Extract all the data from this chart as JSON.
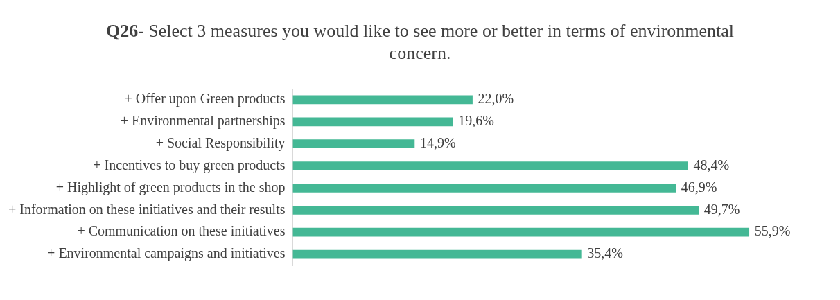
{
  "chart_data": {
    "type": "bar",
    "orientation": "horizontal",
    "title": "Q26- Select 3 measures you would like to see more or better in terms of environmental concern.",
    "categories": [
      "+ Offer upon Green products",
      "+ Environmental partnerships",
      "+ Social Responsibility",
      "+ Incentives to buy green products",
      "+ Highlight of green products in the shop",
      "+ Information on these initiatives and their results",
      "+ Communication on these initiatives",
      "+ Environmental campaigns and initiatives"
    ],
    "values": [
      22.0,
      19.6,
      14.9,
      48.4,
      46.9,
      49.7,
      55.9,
      35.4
    ],
    "value_labels": [
      "22,0%",
      "19,6%",
      "14,9%",
      "48,4%",
      "46,9%",
      "49,7%",
      "55,9%",
      "35,4%"
    ],
    "color": "#44b895"
  }
}
